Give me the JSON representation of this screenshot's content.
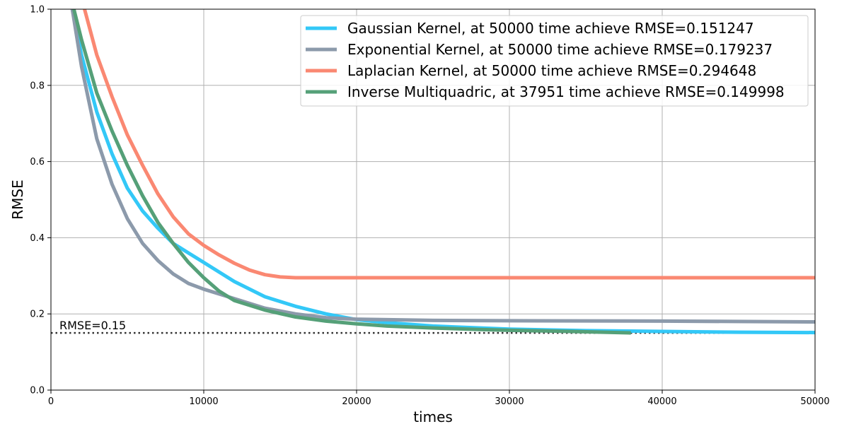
{
  "chart_data": {
    "type": "line",
    "title": "",
    "xlabel": "times",
    "ylabel": "RMSE",
    "xlim": [
      0,
      50000
    ],
    "ylim": [
      0,
      1.0
    ],
    "xticks": [
      "0",
      "10000",
      "20000",
      "30000",
      "40000",
      "50000"
    ],
    "yticks": [
      "0.0",
      "0.2",
      "0.4",
      "0.6",
      "0.8",
      "1.0"
    ],
    "grid": true,
    "legend_position": "top-right",
    "series": [
      {
        "name": "Gaussian Kernel, at 50000 time achieve RMSE=0.151247",
        "color": "#33c8f7",
        "x": [
          1400,
          2000,
          3000,
          4000,
          5000,
          6000,
          7000,
          8000,
          9000,
          10000,
          12000,
          14000,
          16000,
          18000,
          20000,
          22000,
          25000,
          30000,
          35000,
          40000,
          45000,
          50000
        ],
        "y": [
          1.0,
          0.88,
          0.73,
          0.62,
          0.53,
          0.47,
          0.425,
          0.385,
          0.36,
          0.335,
          0.285,
          0.245,
          0.22,
          0.2,
          0.185,
          0.177,
          0.168,
          0.16,
          0.156,
          0.154,
          0.152,
          0.151
        ]
      },
      {
        "name": "Exponential Kernel, at 50000 time achieve RMSE=0.179237",
        "color": "#8c9aab",
        "x": [
          1400,
          2000,
          3000,
          4000,
          5000,
          6000,
          7000,
          8000,
          9000,
          10000,
          12000,
          14000,
          16000,
          18000,
          20000,
          25000,
          30000,
          40000,
          50000
        ],
        "y": [
          1.0,
          0.85,
          0.66,
          0.54,
          0.45,
          0.385,
          0.34,
          0.305,
          0.28,
          0.265,
          0.24,
          0.215,
          0.2,
          0.19,
          0.186,
          0.183,
          0.182,
          0.181,
          0.179
        ]
      },
      {
        "name": "Laplacian Kernel, at 50000 time achieve RMSE=0.294648",
        "color": "#fa8872",
        "x": [
          2200,
          3000,
          4000,
          5000,
          6000,
          7000,
          8000,
          9000,
          10000,
          11000,
          12000,
          13000,
          14000,
          15000,
          16000,
          18000,
          20000,
          25000,
          30000,
          40000,
          50000
        ],
        "y": [
          1.0,
          0.88,
          0.77,
          0.67,
          0.59,
          0.515,
          0.455,
          0.41,
          0.38,
          0.355,
          0.333,
          0.315,
          0.303,
          0.297,
          0.295,
          0.295,
          0.295,
          0.295,
          0.295,
          0.295,
          0.295
        ]
      },
      {
        "name": "Inverse Multiquadric, at 37951 time achieve RMSE=0.149998",
        "color": "#55a078",
        "x": [
          1500,
          2000,
          3000,
          4000,
          5000,
          6000,
          7000,
          8000,
          9000,
          10000,
          11000,
          12000,
          14000,
          16000,
          18000,
          20000,
          22000,
          25000,
          28000,
          30000,
          34000,
          37951
        ],
        "y": [
          1.0,
          0.92,
          0.78,
          0.68,
          0.59,
          0.51,
          0.44,
          0.385,
          0.335,
          0.295,
          0.26,
          0.235,
          0.21,
          0.192,
          0.181,
          0.174,
          0.168,
          0.163,
          0.159,
          0.157,
          0.154,
          0.15
        ]
      }
    ],
    "reference_line": {
      "y": 0.15,
      "label": "RMSE=0.15",
      "color": "#333333",
      "style": "dotted"
    }
  }
}
